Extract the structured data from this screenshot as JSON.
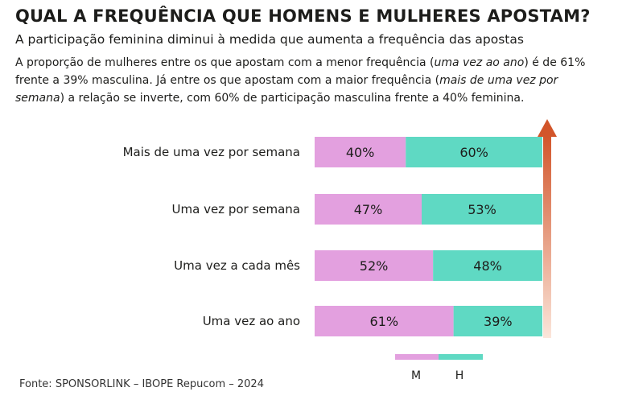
{
  "header": {
    "title": "QUAL A FREQUÊNCIA QUE HOMENS E MULHERES APOSTAM?",
    "subtitle": "A participação feminina diminui à medida que aumenta a frequência das apostas",
    "desc_1": "A proporção de mulheres entre os que apostam com a menor frequência (",
    "desc_2": "uma vez ao ano",
    "desc_3": ") é de 61% frente a 39% masculina. Já entre os que apostam com a maior frequência (",
    "desc_4": "mais de uma vez por semana",
    "desc_5": ") a relação se inverte, com 60% de participação masculina frente a 40% feminina."
  },
  "source": "Fonte: SPONSORLINK – IBOPE Repucom – 2024",
  "colors": {
    "mulheres": "#e3a0df",
    "homens": "#5fd9c3",
    "arrow_top": "#d2552a",
    "arrow_bottom": "#fbe6db"
  },
  "chart_data": {
    "type": "bar",
    "orientation": "horizontal",
    "stacked": true,
    "percent": true,
    "categories": [
      "Mais de uma vez por semana",
      "Uma vez por semana",
      "Uma vez a cada mês",
      "Uma vez ao ano"
    ],
    "series": [
      {
        "name": "M",
        "values": [
          40,
          47,
          52,
          61
        ],
        "labels": [
          "40%",
          "47%",
          "52%",
          "61%"
        ]
      },
      {
        "name": "H",
        "values": [
          60,
          53,
          48,
          39
        ],
        "labels": [
          "60%",
          "53%",
          "48%",
          "39%"
        ]
      }
    ],
    "xlim": [
      0,
      100
    ],
    "legend": {
      "position": "bottom",
      "labels": [
        "M",
        "H"
      ]
    },
    "annotation": "arrow pointing upward indicating increasing frequency"
  }
}
